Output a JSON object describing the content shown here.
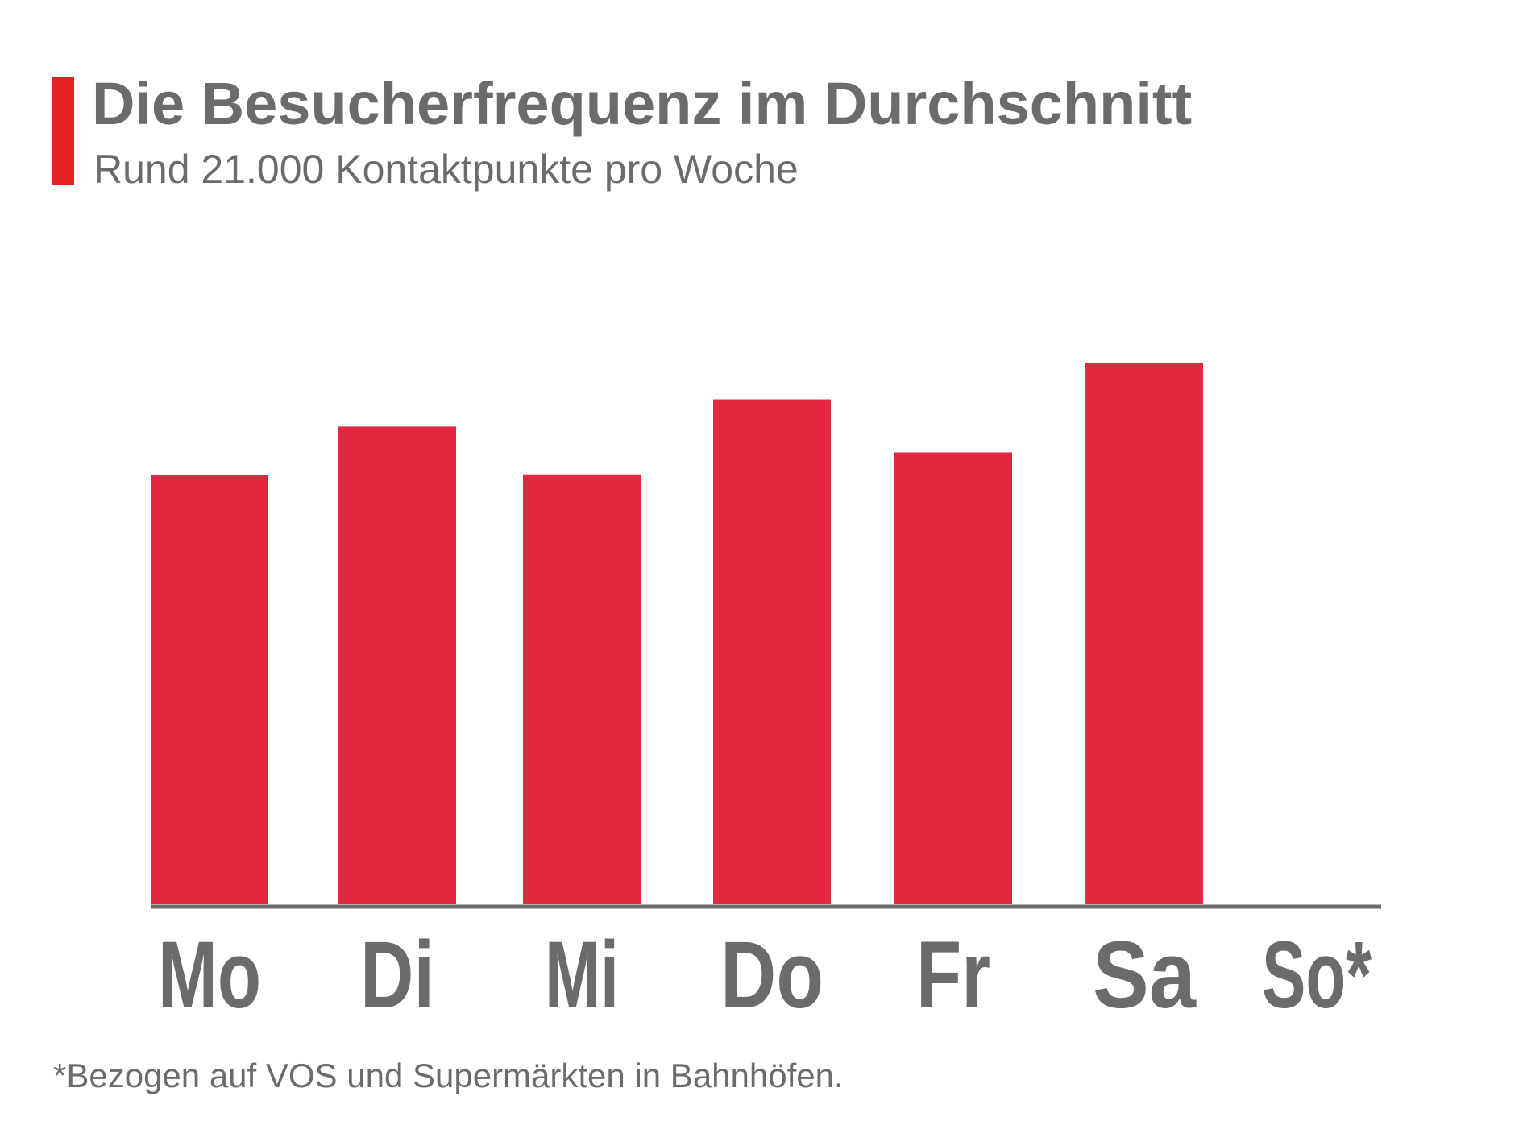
{
  "header": {
    "title": "Die Besucherfrequenz im Durchschnitt",
    "subtitle": "Rund 21.000 Kontaktpunkte pro Woche"
  },
  "footnote": "*Bezogen auf VOS und Supermärkten in Bahnhöfen.",
  "colors": {
    "accent": "#e32222",
    "bar": "#e42741",
    "text": "#6b6b6b",
    "axis": "#6b6b6b"
  },
  "chart_data": {
    "type": "bar",
    "title": "Die Besucherfrequenz im Durchschnitt",
    "subtitle": "Rund 21.000 Kontaktpunkte pro Woche",
    "categories": [
      "Mo",
      "Di",
      "Mi",
      "Do",
      "Fr",
      "Sa",
      "So*"
    ],
    "values": [
      2986,
      3326,
      2993,
      3516,
      3146,
      3766,
      0
    ],
    "ylim": [
      0,
      3766
    ],
    "grid": false,
    "legend": "none",
    "yaxis_visible": false
  }
}
